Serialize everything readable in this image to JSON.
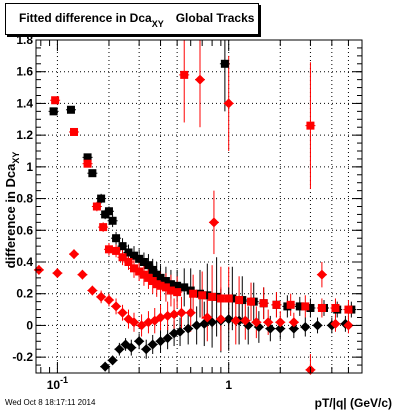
{
  "chart_data": {
    "type": "scatter",
    "title": "Fitted difference in Dca",
    "title_sub": "XY",
    "title_rest": "Global Tracks",
    "ylabel": "difference in Dca",
    "ylabel_sub": "XY",
    "xlabel": "pT/|q| (GeV/c)",
    "xscale": "log",
    "xlim": [
      0.075,
      6.0
    ],
    "ylim": [
      -0.3,
      1.8
    ],
    "grid": true,
    "x_ticks": [
      {
        "value": 0.1,
        "label": "10",
        "sup": "-1"
      },
      {
        "value": 1,
        "label": "1"
      }
    ],
    "y_ticks": [
      {
        "value": -0.2,
        "label": "-0.2"
      },
      {
        "value": 0,
        "label": "0"
      },
      {
        "value": 0.2,
        "label": "0.2"
      },
      {
        "value": 0.4,
        "label": "0.4"
      },
      {
        "value": 0.6,
        "label": "0.6"
      },
      {
        "value": 0.8,
        "label": "0.8"
      },
      {
        "value": 1,
        "label": "1"
      },
      {
        "value": 1.2,
        "label": "1.2"
      },
      {
        "value": 1.4,
        "label": "1.4"
      },
      {
        "value": 1.6,
        "label": "1.6"
      },
      {
        "value": 1.8,
        "label": "1.8"
      }
    ],
    "series": [
      {
        "marker": "square",
        "color": "#000000",
        "points": [
          [
            0.095,
            1.35,
            0.02
          ],
          [
            0.12,
            1.36,
            0.02
          ],
          [
            0.15,
            1.06,
            0.02
          ],
          [
            0.16,
            0.96,
            0.02
          ],
          [
            0.18,
            0.8,
            0.03
          ],
          [
            0.19,
            0.7,
            0.03
          ],
          [
            0.2,
            0.72,
            0.03
          ],
          [
            0.21,
            0.66,
            0.04
          ],
          [
            0.22,
            0.55,
            0.04
          ],
          [
            0.24,
            0.5,
            0.05
          ],
          [
            0.26,
            0.46,
            0.05
          ],
          [
            0.28,
            0.44,
            0.06
          ],
          [
            0.3,
            0.42,
            0.06
          ],
          [
            0.32,
            0.4,
            0.06
          ],
          [
            0.34,
            0.38,
            0.07
          ],
          [
            0.36,
            0.35,
            0.07
          ],
          [
            0.38,
            0.32,
            0.08
          ],
          [
            0.4,
            0.3,
            0.08
          ],
          [
            0.43,
            0.28,
            0.09
          ],
          [
            0.46,
            0.26,
            0.09
          ],
          [
            0.5,
            0.25,
            0.1
          ],
          [
            0.55,
            0.24,
            0.12
          ],
          [
            0.6,
            0.22,
            0.14
          ],
          [
            0.68,
            0.2,
            0.15
          ],
          [
            0.75,
            0.19,
            0.2
          ],
          [
            0.85,
            0.18,
            0.25
          ],
          [
            0.95,
            1.65,
            0.3
          ],
          [
            1.05,
            0.17,
            0.2
          ],
          [
            1.2,
            0.16,
            0.15
          ],
          [
            1.4,
            0.15,
            0.12
          ],
          [
            1.6,
            0.14,
            0.1
          ],
          [
            1.9,
            0.13,
            0.08
          ],
          [
            2.2,
            0.12,
            0.07
          ],
          [
            2.6,
            0.12,
            0.06
          ],
          [
            3.0,
            0.11,
            0.06
          ],
          [
            3.6,
            0.11,
            0.05
          ],
          [
            4.3,
            0.1,
            0.05
          ],
          [
            5.2,
            0.1,
            0.05
          ]
        ]
      },
      {
        "marker": "square",
        "color": "#ff0000",
        "points": [
          [
            0.097,
            1.42,
            0.02
          ],
          [
            0.125,
            1.22,
            0.02
          ],
          [
            0.15,
            1.02,
            0.02
          ],
          [
            0.17,
            0.75,
            0.03
          ],
          [
            0.185,
            0.62,
            0.03
          ],
          [
            0.2,
            0.48,
            0.04
          ],
          [
            0.22,
            0.47,
            0.04
          ],
          [
            0.24,
            0.43,
            0.05
          ],
          [
            0.26,
            0.4,
            0.05
          ],
          [
            0.28,
            0.36,
            0.06
          ],
          [
            0.3,
            0.34,
            0.06
          ],
          [
            0.32,
            0.32,
            0.07
          ],
          [
            0.34,
            0.3,
            0.07
          ],
          [
            0.36,
            0.28,
            0.08
          ],
          [
            0.38,
            0.26,
            0.08
          ],
          [
            0.4,
            0.25,
            0.09
          ],
          [
            0.43,
            0.24,
            0.09
          ],
          [
            0.46,
            0.22,
            0.1
          ],
          [
            0.5,
            0.21,
            0.1
          ],
          [
            0.55,
            1.58,
            0.3
          ],
          [
            0.62,
            0.2,
            0.12
          ],
          [
            0.7,
            0.19,
            0.15
          ],
          [
            0.8,
            0.18,
            0.2
          ],
          [
            0.9,
            0.17,
            0.2
          ],
          [
            1.0,
            0.17,
            0.2
          ],
          [
            1.15,
            0.16,
            0.15
          ],
          [
            1.35,
            0.15,
            0.12
          ],
          [
            1.6,
            0.14,
            0.1
          ],
          [
            1.9,
            0.13,
            0.08
          ],
          [
            2.3,
            0.13,
            0.07
          ],
          [
            2.8,
            0.12,
            0.07
          ],
          [
            3.0,
            1.26,
            0.4
          ],
          [
            3.5,
            0.11,
            0.06
          ],
          [
            4.2,
            0.11,
            0.06
          ],
          [
            5.0,
            0.1,
            0.06
          ]
        ]
      },
      {
        "marker": "diamond",
        "color": "#000000",
        "points": [
          [
            0.19,
            -0.26,
            0.03
          ],
          [
            0.21,
            -0.22,
            0.03
          ],
          [
            0.23,
            -0.15,
            0.04
          ],
          [
            0.25,
            -0.12,
            0.04
          ],
          [
            0.27,
            -0.14,
            0.05
          ],
          [
            0.3,
            -0.1,
            0.05
          ],
          [
            0.33,
            -0.15,
            0.06
          ],
          [
            0.36,
            -0.12,
            0.06
          ],
          [
            0.4,
            -0.1,
            0.07
          ],
          [
            0.44,
            -0.08,
            0.07
          ],
          [
            0.48,
            -0.05,
            0.08
          ],
          [
            0.52,
            -0.04,
            0.09
          ],
          [
            0.58,
            -0.02,
            0.1
          ],
          [
            0.65,
            0.0,
            0.12
          ],
          [
            0.72,
            0.01,
            0.14
          ],
          [
            0.8,
            0.02,
            0.16
          ],
          [
            0.9,
            0.03,
            0.2
          ],
          [
            1.0,
            0.04,
            0.2
          ],
          [
            1.15,
            0.03,
            0.15
          ],
          [
            1.3,
            0.0,
            0.12
          ],
          [
            1.5,
            -0.01,
            0.1
          ],
          [
            1.75,
            -0.02,
            0.08
          ],
          [
            2.0,
            -0.02,
            0.07
          ],
          [
            2.4,
            -0.02,
            0.06
          ],
          [
            2.8,
            -0.01,
            0.06
          ],
          [
            3.3,
            0.0,
            0.05
          ],
          [
            4.0,
            0.0,
            0.05
          ],
          [
            4.8,
            0.01,
            0.05
          ]
        ]
      },
      {
        "marker": "diamond",
        "color": "#ff0000",
        "points": [
          [
            0.078,
            0.35,
            0.03
          ],
          [
            0.1,
            0.33,
            0.03
          ],
          [
            0.125,
            0.45,
            0.03
          ],
          [
            0.14,
            0.32,
            0.03
          ],
          [
            0.16,
            0.22,
            0.03
          ],
          [
            0.18,
            0.18,
            0.04
          ],
          [
            0.2,
            0.16,
            0.04
          ],
          [
            0.22,
            0.12,
            0.05
          ],
          [
            0.24,
            0.08,
            0.05
          ],
          [
            0.26,
            0.04,
            0.06
          ],
          [
            0.28,
            0.02,
            0.06
          ],
          [
            0.31,
            0.0,
            0.07
          ],
          [
            0.34,
            0.02,
            0.07
          ],
          [
            0.37,
            0.03,
            0.08
          ],
          [
            0.4,
            0.05,
            0.08
          ],
          [
            0.44,
            0.06,
            0.09
          ],
          [
            0.48,
            0.07,
            0.1
          ],
          [
            0.53,
            0.08,
            0.1
          ],
          [
            0.6,
            0.08,
            0.12
          ],
          [
            0.68,
            1.55,
            0.3
          ],
          [
            0.75,
            0.05,
            0.15
          ],
          [
            0.82,
            0.65,
            0.2
          ],
          [
            0.9,
            0.04,
            0.2
          ],
          [
            1.0,
            1.4,
            0.3
          ],
          [
            1.1,
            0.03,
            0.15
          ],
          [
            1.25,
            0.03,
            0.12
          ],
          [
            1.45,
            0.02,
            0.1
          ],
          [
            1.7,
            0.02,
            0.08
          ],
          [
            2.0,
            0.02,
            0.07
          ],
          [
            2.4,
            0.02,
            0.06
          ],
          [
            3.0,
            -0.28,
            0.1
          ],
          [
            3.5,
            0.32,
            0.08
          ],
          [
            4.2,
            0.01,
            0.05
          ],
          [
            5.0,
            0.0,
            0.05
          ]
        ]
      }
    ]
  },
  "footer": "Wed Oct  8 18:17:11 2014"
}
